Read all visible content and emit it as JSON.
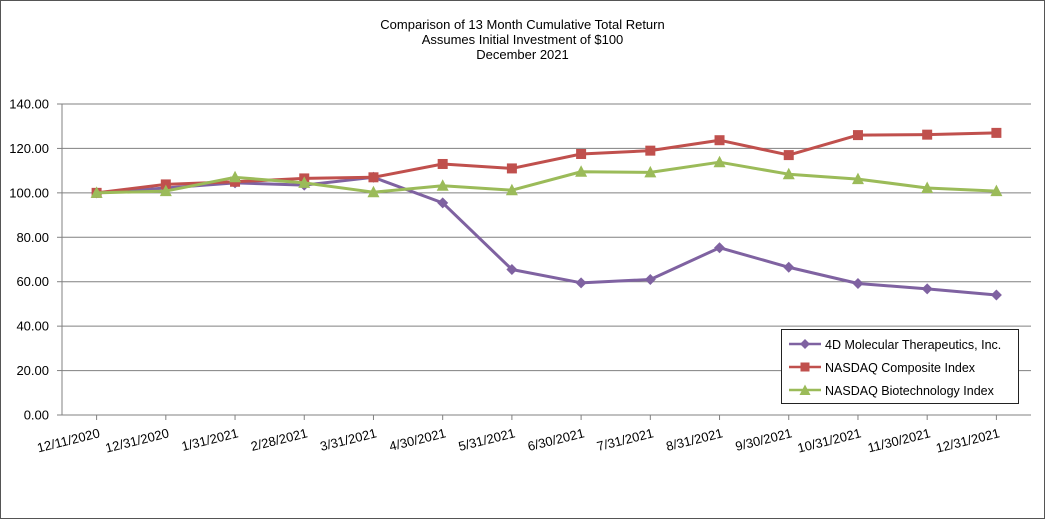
{
  "chart_data": {
    "type": "line",
    "title": "Comparison of 13 Month Cumulative Total Return",
    "subtitle_lines": [
      "Assumes Initial Investment of $100",
      "December 2021"
    ],
    "xlabel": "",
    "ylabel": "",
    "ylim": [
      0,
      140
    ],
    "yticks": [
      "0.00",
      "20.00",
      "40.00",
      "60.00",
      "80.00",
      "100.00",
      "120.00",
      "140.00"
    ],
    "grid": true,
    "legend_position": "bottom-right",
    "categories": [
      "12/11/2020",
      "12/31/2020",
      "1/31/2021",
      "2/28/2021",
      "3/31/2021",
      "4/30/2021",
      "5/31/2021",
      "6/30/2021",
      "7/31/2021",
      "8/31/2021",
      "9/30/2021",
      "10/31/2021",
      "11/30/2021",
      "12/31/2021"
    ],
    "series": [
      {
        "name": "4D Molecular Therapeutics, Inc.",
        "color": "#7f62a1",
        "marker": "diamond",
        "values": [
          100.0,
          102.2,
          104.5,
          103.5,
          107.0,
          95.5,
          65.5,
          59.5,
          61.0,
          75.3,
          66.5,
          59.2,
          56.8,
          54.0
        ]
      },
      {
        "name": "NASDAQ Composite Index",
        "color": "#c0504d",
        "marker": "square",
        "values": [
          100.0,
          103.8,
          105.0,
          106.5,
          107.0,
          113.0,
          111.0,
          117.5,
          119.0,
          123.7,
          117.0,
          126.0,
          126.2,
          127.0
        ]
      },
      {
        "name": "NASDAQ Biotechnology Index",
        "color": "#9bbb59",
        "marker": "triangle",
        "values": [
          100.0,
          100.8,
          107.0,
          104.5,
          100.3,
          103.2,
          101.2,
          109.5,
          109.2,
          113.8,
          108.4,
          106.2,
          102.2,
          100.8
        ]
      }
    ]
  }
}
